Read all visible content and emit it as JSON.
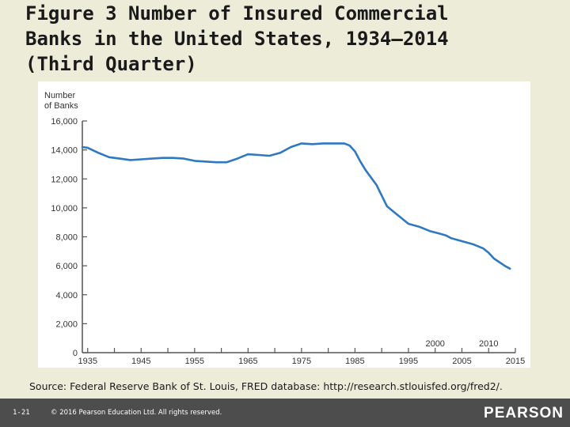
{
  "slide": {
    "title_lines": [
      "Figure 3 Number of Insured Commercial",
      "Banks in the United States, 1934–2014",
      "(Third Quarter)"
    ],
    "source": "Source: Federal Reserve Bank of St. Louis, FRED database: http://research.stlouisfed.org/fred2/.",
    "slide_number": "1-21",
    "copyright": "© 2016 Pearson Education Ltd. All rights reserved.",
    "brand": "PEARSON"
  },
  "colors": {
    "line": "#2f78c2",
    "axis": "#555555",
    "text": "#333333"
  },
  "chart_data": {
    "type": "line",
    "ylabel_lines": [
      "Number",
      "of Banks"
    ],
    "xlim": [
      1934,
      2015
    ],
    "ylim": [
      0,
      16000
    ],
    "x_ticks": [
      1935,
      1945,
      1955,
      1965,
      1975,
      1985,
      1995,
      2005,
      2015
    ],
    "x_tick_labels": [
      "1935",
      "1945",
      "1955",
      "1965",
      "1975",
      "1985",
      "1995",
      "2005",
      "2015"
    ],
    "x_top_labels": [
      {
        "x": 2000,
        "label": "2000"
      },
      {
        "x": 2010,
        "label": "2010"
      }
    ],
    "y_ticks": [
      0,
      2000,
      4000,
      6000,
      8000,
      10000,
      12000,
      14000,
      16000
    ],
    "y_tick_labels": [
      "0",
      "2,000",
      "4,000",
      "6,000",
      "8,000",
      "10,000",
      "12,000",
      "14,000",
      "16,000"
    ],
    "series": [
      {
        "x": [
          1934,
          1935,
          1937,
          1939,
          1941,
          1943,
          1945,
          1947,
          1949,
          1951,
          1953,
          1955,
          1957,
          1959,
          1961,
          1963,
          1965,
          1967,
          1969,
          1971,
          1973,
          1975,
          1977,
          1979,
          1981,
          1983,
          1984,
          1985,
          1986,
          1987,
          1989,
          1991,
          1993,
          1995,
          1997,
          1999,
          2001,
          2002,
          2003,
          2005,
          2007,
          2009,
          2010,
          2011,
          2013,
          2014
        ],
        "y": [
          14200,
          14150,
          13800,
          13500,
          13400,
          13300,
          13350,
          13400,
          13450,
          13450,
          13400,
          13250,
          13200,
          13150,
          13150,
          13400,
          13700,
          13650,
          13600,
          13800,
          14200,
          14450,
          14400,
          14450,
          14450,
          14450,
          14300,
          13900,
          13200,
          12600,
          11600,
          10100,
          9500,
          8900,
          8700,
          8400,
          8200,
          8100,
          7900,
          7700,
          7500,
          7200,
          6900,
          6500,
          6000,
          5800
        ]
      }
    ]
  }
}
